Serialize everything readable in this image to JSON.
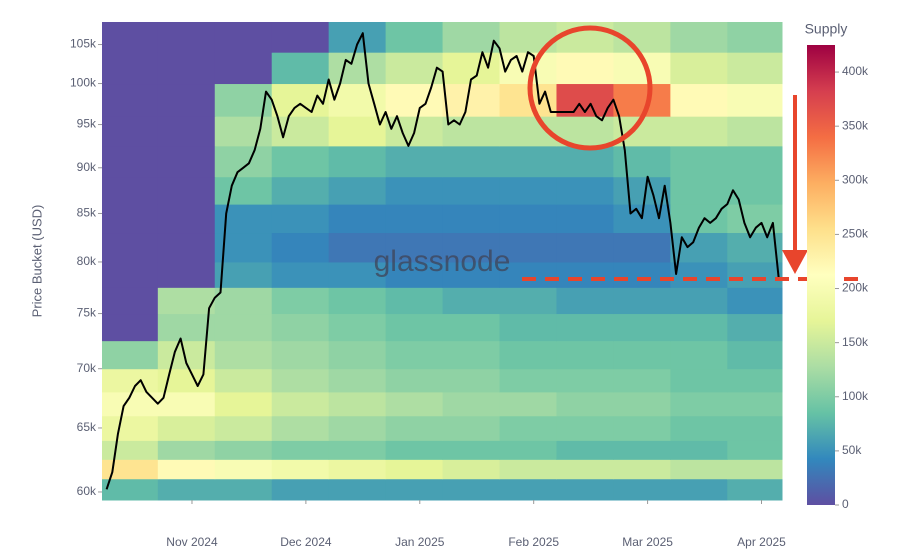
{
  "chart_data": {
    "type": "heatmap",
    "y_label": "Price Bucket (USD)",
    "watermark": "glassnode",
    "colorbar_title": "Supply",
    "log_y": true,
    "xlim": [
      -2.79,
      3.18
    ],
    "xticks": [
      {
        "value": -2,
        "label": "Nov 2024"
      },
      {
        "value": -1,
        "label": "Dec 2024"
      },
      {
        "value": 0,
        "label": "Jan 2025"
      },
      {
        "value": 1,
        "label": "Feb 2025"
      },
      {
        "value": 2,
        "label": "Mar 2025"
      },
      {
        "value": 3,
        "label": "Apr 2025"
      }
    ],
    "ylim": [
      59400,
      108000
    ],
    "yticks": [
      {
        "value": 60000,
        "label": "60k"
      },
      {
        "value": 65000,
        "label": "65k"
      },
      {
        "value": 70000,
        "label": "70k"
      },
      {
        "value": 75000,
        "label": "75k"
      },
      {
        "value": 80000,
        "label": "80k"
      },
      {
        "value": 85000,
        "label": "85k"
      },
      {
        "value": 90000,
        "label": "90k"
      },
      {
        "value": 95000,
        "label": "95k"
      },
      {
        "value": 100000,
        "label": "100k"
      },
      {
        "value": 105000,
        "label": "105k"
      }
    ],
    "zlim": [
      0,
      425000
    ],
    "zticks": [
      0,
      {
        "value": 50000,
        "label": "50k"
      },
      {
        "value": 100000,
        "label": "100k"
      },
      {
        "value": 150000,
        "label": "150k"
      },
      {
        "value": 200000,
        "label": "200k"
      },
      {
        "value": 250000,
        "label": "250k"
      },
      {
        "value": 300000,
        "label": "300k"
      },
      {
        "value": 350000,
        "label": "350k"
      },
      {
        "value": 400000,
        "label": "400k"
      }
    ],
    "colorscale": [
      "#5e4fa2",
      "#3288bd",
      "#66c2a5",
      "#abdda4",
      "#e6f598",
      "#ffffbf",
      "#fee08b",
      "#fdae61",
      "#f46d43",
      "#d53e4f",
      "#9e0142"
    ],
    "x_edges": [
      -2.79,
      -2.3,
      -1.8,
      -1.3,
      -0.8,
      -0.3,
      0.2,
      0.7,
      1.2,
      1.7,
      2.2,
      2.7,
      3.18
    ],
    "y_edges": [
      59400,
      61000,
      62500,
      64000,
      66000,
      68000,
      70000,
      72500,
      75000,
      77500,
      80000,
      83000,
      86000,
      89000,
      92500,
      96000,
      100000,
      104000,
      108000
    ],
    "z": [
      [
        80000,
        70000,
        70000,
        60000,
        60000,
        60000,
        60000,
        60000,
        60000,
        60000,
        60000,
        70000
      ],
      [
        250000,
        220000,
        200000,
        190000,
        180000,
        170000,
        160000,
        150000,
        150000,
        150000,
        140000,
        140000
      ],
      [
        150000,
        120000,
        110000,
        100000,
        100000,
        90000,
        90000,
        90000,
        80000,
        80000,
        80000,
        90000
      ],
      [
        180000,
        160000,
        150000,
        130000,
        120000,
        110000,
        110000,
        100000,
        100000,
        100000,
        90000,
        90000
      ],
      [
        200000,
        200000,
        170000,
        150000,
        140000,
        130000,
        120000,
        120000,
        110000,
        110000,
        100000,
        100000
      ],
      [
        180000,
        170000,
        150000,
        130000,
        120000,
        110000,
        110000,
        100000,
        100000,
        100000,
        90000,
        90000
      ],
      [
        110000,
        150000,
        130000,
        120000,
        110000,
        100000,
        100000,
        90000,
        90000,
        90000,
        90000,
        80000
      ],
      [
        0,
        120000,
        120000,
        110000,
        100000,
        90000,
        90000,
        80000,
        80000,
        80000,
        80000,
        70000
      ],
      [
        0,
        130000,
        120000,
        100000,
        90000,
        80000,
        70000,
        70000,
        60000,
        60000,
        60000,
        50000
      ],
      [
        0,
        0,
        60000,
        50000,
        50000,
        40000,
        40000,
        40000,
        40000,
        40000,
        50000,
        60000
      ],
      [
        0,
        0,
        50000,
        40000,
        30000,
        30000,
        30000,
        30000,
        30000,
        30000,
        60000,
        70000
      ],
      [
        0,
        0,
        50000,
        50000,
        40000,
        40000,
        40000,
        40000,
        40000,
        50000,
        90000,
        100000
      ],
      [
        0,
        0,
        90000,
        70000,
        60000,
        50000,
        50000,
        50000,
        50000,
        60000,
        90000,
        90000
      ],
      [
        0,
        0,
        110000,
        90000,
        80000,
        70000,
        70000,
        70000,
        70000,
        80000,
        90000,
        90000
      ],
      [
        0,
        0,
        130000,
        150000,
        170000,
        150000,
        140000,
        140000,
        140000,
        150000,
        150000,
        140000
      ],
      [
        0,
        0,
        110000,
        170000,
        190000,
        220000,
        230000,
        250000,
        370000,
        330000,
        220000,
        200000
      ],
      [
        0,
        0,
        0,
        80000,
        130000,
        150000,
        170000,
        200000,
        220000,
        200000,
        160000,
        150000
      ],
      [
        0,
        0,
        0,
        0,
        60000,
        90000,
        120000,
        140000,
        150000,
        140000,
        120000,
        110000
      ]
    ],
    "series": [
      {
        "type": "line",
        "color": "#000000",
        "x": [
          -2.75,
          -2.7,
          -2.65,
          -2.6,
          -2.55,
          -2.5,
          -2.45,
          -2.4,
          -2.35,
          -2.3,
          -2.25,
          -2.2,
          -2.15,
          -2.1,
          -2.05,
          -2.0,
          -1.95,
          -1.9,
          -1.85,
          -1.8,
          -1.75,
          -1.7,
          -1.65,
          -1.6,
          -1.55,
          -1.5,
          -1.45,
          -1.4,
          -1.35,
          -1.3,
          -1.25,
          -1.2,
          -1.15,
          -1.1,
          -1.05,
          -1.0,
          -0.95,
          -0.9,
          -0.85,
          -0.8,
          -0.75,
          -0.7,
          -0.65,
          -0.6,
          -0.55,
          -0.5,
          -0.45,
          -0.4,
          -0.35,
          -0.3,
          -0.25,
          -0.2,
          -0.15,
          -0.1,
          -0.05,
          0.0,
          0.05,
          0.1,
          0.15,
          0.2,
          0.25,
          0.3,
          0.35,
          0.4,
          0.45,
          0.5,
          0.55,
          0.6,
          0.65,
          0.7,
          0.75,
          0.8,
          0.85,
          0.9,
          0.95,
          1.0,
          1.05,
          1.1,
          1.15,
          1.2,
          1.25,
          1.3,
          1.35,
          1.4,
          1.45,
          1.5,
          1.55,
          1.6,
          1.65,
          1.7,
          1.75,
          1.8,
          1.85,
          1.9,
          1.95,
          2.0,
          2.05,
          2.1,
          2.15,
          2.2,
          2.25,
          2.3,
          2.35,
          2.4,
          2.45,
          2.5,
          2.55,
          2.6,
          2.65,
          2.7,
          2.75,
          2.8,
          2.85,
          2.9,
          2.95,
          3.0,
          3.05,
          3.1,
          3.15
        ],
        "values": [
          60200,
          61500,
          64500,
          66800,
          67500,
          68500,
          69000,
          68000,
          67500,
          67000,
          67500,
          69500,
          71500,
          72700,
          70500,
          69500,
          68500,
          69500,
          75500,
          76500,
          77000,
          85000,
          88000,
          89500,
          90000,
          90500,
          92000,
          94500,
          99000,
          98000,
          96000,
          93500,
          96000,
          97000,
          97500,
          97000,
          96500,
          98500,
          97500,
          100500,
          98000,
          100000,
          103000,
          102500,
          105000,
          106500,
          100000,
          97500,
          95000,
          96500,
          94500,
          96000,
          94000,
          92500,
          94000,
          97000,
          97500,
          99500,
          102000,
          101500,
          95000,
          95500,
          95000,
          96500,
          100500,
          101000,
          104000,
          102000,
          105500,
          104500,
          101500,
          103000,
          103500,
          101500,
          104000,
          103500,
          97500,
          99000,
          96500,
          96500,
          96500,
          96500,
          96500,
          97500,
          96500,
          97500,
          96000,
          95500,
          97000,
          98000,
          96000,
          92000,
          85000,
          85500,
          84500,
          89000,
          87000,
          84500,
          88000,
          84000,
          78800,
          82500,
          81500,
          82000,
          83500,
          84500,
          84000,
          84500,
          85500,
          86000,
          87500,
          86500,
          84000,
          82500,
          83500,
          84000,
          82500,
          84000,
          78500
        ]
      }
    ]
  }
}
